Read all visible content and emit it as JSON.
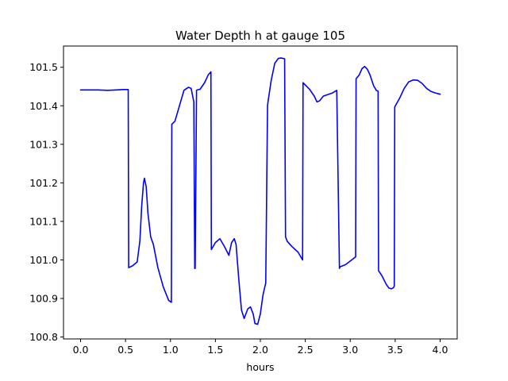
{
  "chart_data": {
    "type": "line",
    "title": "Water Depth h at gauge 105",
    "xlabel": "hours",
    "ylabel": "",
    "xlim": [
      -0.19,
      4.19
    ],
    "ylim": [
      100.795,
      101.555
    ],
    "xticks": [
      0.0,
      0.5,
      1.0,
      1.5,
      2.0,
      2.5,
      3.0,
      3.5,
      4.0
    ],
    "xtick_labels": [
      "0.0",
      "0.5",
      "1.0",
      "1.5",
      "2.0",
      "2.5",
      "3.0",
      "3.5",
      "4.0"
    ],
    "yticks": [
      100.8,
      100.9,
      101.0,
      101.1,
      101.2,
      101.3,
      101.4,
      101.5
    ],
    "ytick_labels": [
      "100.8",
      "100.9",
      "101.0",
      "101.1",
      "101.2",
      "101.3",
      "101.4",
      "101.5"
    ],
    "grid": false,
    "line_color": "#0000ff",
    "series": [
      {
        "x": [
          0.0,
          0.1,
          0.2,
          0.3,
          0.4,
          0.47,
          0.53,
          0.535,
          0.58,
          0.63,
          0.66,
          0.68,
          0.7,
          0.71,
          0.73,
          0.75,
          0.78,
          0.81,
          0.86,
          0.92,
          0.98,
          1.01,
          1.015,
          1.05,
          1.1,
          1.15,
          1.2,
          1.23,
          1.26,
          1.27,
          1.275,
          1.29,
          1.295,
          1.33,
          1.38,
          1.42,
          1.45,
          1.455,
          1.5,
          1.55,
          1.6,
          1.65,
          1.68,
          1.71,
          1.73,
          1.76,
          1.79,
          1.82,
          1.86,
          1.89,
          1.92,
          1.94,
          1.97,
          2.0,
          2.03,
          2.06,
          2.08,
          2.085,
          2.12,
          2.16,
          2.2,
          2.23,
          2.27,
          2.28,
          2.3,
          2.35,
          2.42,
          2.47,
          2.475,
          2.55,
          2.6,
          2.63,
          2.66,
          2.7,
          2.75,
          2.8,
          2.85,
          2.88,
          2.885,
          2.95,
          3.0,
          3.06,
          3.065,
          3.1,
          3.13,
          3.16,
          3.19,
          3.22,
          3.26,
          3.29,
          3.31,
          3.315,
          3.35,
          3.4,
          3.43,
          3.46,
          3.48,
          3.49,
          3.495,
          3.55,
          3.6,
          3.65,
          3.7,
          3.75,
          3.8,
          3.85,
          3.9,
          3.95,
          4.0
        ],
        "y": [
          101.441,
          101.441,
          101.441,
          101.44,
          101.441,
          101.442,
          101.442,
          100.98,
          100.985,
          100.995,
          101.05,
          101.14,
          101.2,
          101.212,
          101.19,
          101.12,
          101.06,
          101.04,
          100.98,
          100.93,
          100.895,
          100.89,
          101.352,
          101.36,
          101.4,
          101.44,
          101.448,
          101.445,
          101.41,
          100.978,
          100.978,
          101.44,
          101.441,
          101.443,
          101.46,
          101.48,
          101.488,
          101.027,
          101.045,
          101.055,
          101.035,
          101.012,
          101.045,
          101.055,
          101.04,
          100.95,
          100.87,
          100.848,
          100.873,
          100.878,
          100.86,
          100.835,
          100.833,
          100.86,
          100.91,
          100.94,
          101.4,
          101.41,
          101.465,
          101.51,
          101.523,
          101.524,
          101.522,
          101.06,
          101.048,
          101.035,
          101.02,
          101.0,
          101.46,
          101.442,
          101.425,
          101.41,
          101.413,
          101.425,
          101.429,
          101.433,
          101.44,
          100.978,
          100.982,
          100.988,
          100.997,
          101.008,
          101.47,
          101.48,
          101.496,
          101.502,
          101.495,
          101.48,
          101.452,
          101.44,
          101.438,
          100.972,
          100.96,
          100.937,
          100.927,
          100.925,
          100.928,
          100.932,
          101.397,
          101.42,
          101.445,
          101.462,
          101.467,
          101.466,
          101.458,
          101.445,
          101.437,
          101.433,
          101.43
        ]
      }
    ]
  }
}
